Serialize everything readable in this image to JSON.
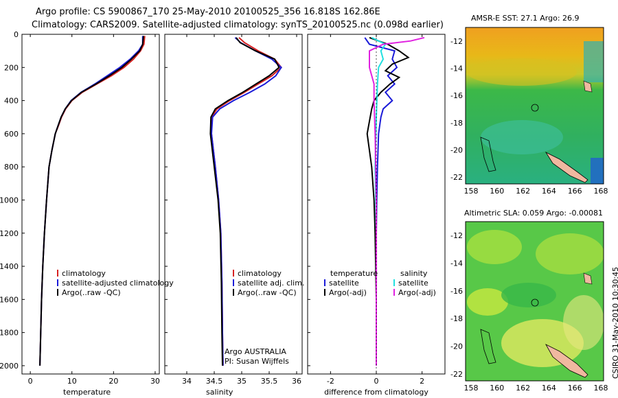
{
  "header": {
    "title_line1": "Argo profile: CS 5900867_170 25-May-2010 20100525_356 16.818S 162.86E",
    "title_line2": "Climatology: CARS2009. Satellite-adjusted climatology: synTS_20100525.nc (0.098d earlier)"
  },
  "colors": {
    "climatology": "#d62020",
    "satellite": "#1a1ad8",
    "argo": "#000000",
    "cyan": "#20e0e0",
    "magenta": "#e020e0"
  },
  "chart_data": [
    {
      "type": "line",
      "id": "temperature",
      "xlabel": "temperature",
      "xlim": [
        -2,
        31
      ],
      "xticks": [
        0,
        10,
        20,
        30
      ],
      "ylim": [
        0,
        2050
      ],
      "yticks": [
        0,
        200,
        400,
        600,
        800,
        1000,
        1200,
        1400,
        1600,
        1800,
        2000
      ],
      "legend": [
        "climatology",
        "satellite-adjusted climatology",
        "Argo(..raw -QC)"
      ],
      "series": [
        {
          "name": "climatology",
          "color": "#d62020",
          "x": [
            27.5,
            27.3,
            26.5,
            24.8,
            22.5,
            19.5,
            16.0,
            12.5,
            10.0,
            8.5,
            7.5,
            6.8,
            6.0,
            5.2,
            4.5,
            3.9,
            3.4,
            3.0,
            2.7,
            2.5,
            2.4,
            2.3
          ],
          "y": [
            10,
            60,
            100,
            150,
            200,
            250,
            300,
            350,
            400,
            450,
            500,
            550,
            600,
            700,
            800,
            1000,
            1200,
            1400,
            1600,
            1800,
            1900,
            2000
          ]
        },
        {
          "name": "satellite",
          "color": "#1a1ad8",
          "x": [
            27.0,
            27.0,
            26.0,
            24.0,
            21.5,
            18.5,
            15.5,
            12.2,
            9.8,
            8.4,
            7.4,
            6.7,
            6.0,
            5.2,
            4.5,
            3.9,
            3.4,
            3.0,
            2.7,
            2.5,
            2.4,
            2.3
          ],
          "y": [
            10,
            60,
            100,
            150,
            200,
            250,
            300,
            350,
            400,
            450,
            500,
            550,
            600,
            700,
            800,
            1000,
            1200,
            1400,
            1600,
            1800,
            1900,
            2000
          ]
        },
        {
          "name": "argo",
          "color": "#000000",
          "x": [
            27.2,
            27.0,
            26.3,
            24.3,
            22.0,
            19.0,
            15.8,
            12.3,
            9.9,
            8.4,
            7.4,
            6.7,
            6.0,
            5.2,
            4.5,
            3.9,
            3.4,
            3.0,
            2.7,
            2.5,
            2.4,
            2.3
          ],
          "y": [
            10,
            60,
            100,
            150,
            200,
            250,
            300,
            350,
            400,
            450,
            500,
            550,
            600,
            700,
            800,
            1000,
            1200,
            1400,
            1600,
            1800,
            1900,
            2000
          ]
        }
      ]
    },
    {
      "type": "line",
      "id": "salinity",
      "xlabel": "salinity",
      "xlim": [
        33.6,
        36.1
      ],
      "xticks": [
        34,
        34.5,
        35,
        35.5,
        36
      ],
      "ylim": [
        0,
        2050
      ],
      "legend": [
        "climatology",
        "satellite adj. clim.",
        "Argo(..raw -QC)"
      ],
      "series": [
        {
          "name": "climatology",
          "color": "#d62020",
          "x": [
            34.95,
            35.05,
            35.3,
            35.6,
            35.72,
            35.55,
            35.3,
            35.05,
            34.78,
            34.55,
            34.45,
            34.45,
            34.52,
            34.58,
            34.62,
            34.64,
            34.65,
            34.66
          ],
          "y": [
            20,
            50,
            100,
            150,
            200,
            250,
            300,
            350,
            400,
            450,
            500,
            600,
            800,
            1000,
            1200,
            1500,
            1800,
            2000
          ]
        },
        {
          "name": "satellite",
          "color": "#1a1ad8",
          "x": [
            34.88,
            34.98,
            35.25,
            35.55,
            35.72,
            35.62,
            35.42,
            35.15,
            34.85,
            34.6,
            34.47,
            34.45,
            34.52,
            34.58,
            34.62,
            34.64,
            34.65,
            34.66
          ],
          "y": [
            20,
            50,
            100,
            150,
            200,
            250,
            300,
            350,
            400,
            450,
            500,
            600,
            800,
            1000,
            1200,
            1500,
            1800,
            2000
          ]
        },
        {
          "name": "argo",
          "color": "#000000",
          "x": [
            34.9,
            34.97,
            35.25,
            35.6,
            35.68,
            35.5,
            35.26,
            35.02,
            34.75,
            34.52,
            34.44,
            34.43,
            34.5,
            34.57,
            34.61,
            34.63,
            34.64,
            34.65
          ],
          "y": [
            20,
            50,
            100,
            150,
            200,
            250,
            300,
            350,
            400,
            450,
            500,
            600,
            800,
            1000,
            1200,
            1500,
            1800,
            2000
          ]
        }
      ],
      "annotation": [
        "Argo AUSTRALIA",
        "PI: Susan Wijffels"
      ]
    },
    {
      "type": "line",
      "id": "difference",
      "xlabel": "difference from climatology",
      "xlim": [
        -3,
        3
      ],
      "xticks": [
        -2,
        0,
        2
      ],
      "ylim": [
        0,
        2050
      ],
      "legend_temperature": [
        "temperature",
        "satellite",
        "Argo(-adj)"
      ],
      "legend_salinity": [
        "salinity",
        "satellite",
        "Argo(-adj)"
      ],
      "series": [
        {
          "name": "temperature satellite",
          "color": "#1a1ad8",
          "x": [
            -0.5,
            -0.3,
            0.8,
            0.7,
            0.9,
            0.5,
            0.8,
            0.4,
            0.7,
            0.3,
            0.2,
            0.1,
            0.05,
            0.02,
            0.0,
            0.0,
            0.0
          ],
          "y": [
            20,
            60,
            100,
            150,
            200,
            250,
            300,
            350,
            400,
            450,
            500,
            600,
            800,
            1000,
            1200,
            1600,
            2000
          ]
        },
        {
          "name": "temperature argo",
          "color": "#000000",
          "x": [
            -0.3,
            0.5,
            1.0,
            1.4,
            0.7,
            0.4,
            1.0,
            0.6,
            0.2,
            -0.1,
            -0.2,
            -0.4,
            -0.2,
            -0.1,
            -0.05,
            0.0,
            0.0
          ],
          "y": [
            20,
            60,
            100,
            140,
            180,
            220,
            260,
            300,
            350,
            400,
            450,
            600,
            800,
            1000,
            1200,
            1600,
            2000
          ]
        },
        {
          "name": "salinity satellite",
          "color": "#20e0e0",
          "x": [
            -0.2,
            0.4,
            0.2,
            0.3,
            0.1,
            0.05,
            0.0,
            -0.05,
            0.0,
            0.0,
            0.0
          ],
          "y": [
            20,
            60,
            100,
            150,
            200,
            300,
            500,
            800,
            1200,
            1600,
            2000
          ]
        },
        {
          "name": "salinity argo",
          "color": "#e020e0",
          "x": [
            2.1,
            1.5,
            0.3,
            -0.3,
            -0.3,
            -0.1,
            -0.1,
            -0.05,
            0.0,
            0.0,
            0.0
          ],
          "y": [
            20,
            40,
            60,
            100,
            200,
            300,
            400,
            600,
            1000,
            1500,
            2000
          ]
        }
      ]
    },
    {
      "type": "heatmap",
      "id": "sst-map",
      "title": "AMSR-E SST: 27.1 Argo: 26.9",
      "xticks": [
        158,
        160,
        162,
        164,
        166,
        168
      ],
      "yticks": [
        -12,
        -14,
        -16,
        -18,
        -20,
        -22
      ]
    },
    {
      "type": "heatmap",
      "id": "sla-map",
      "title": "Altimetric SLA: 0.059 Argo: -0.00081",
      "xticks": [
        158,
        160,
        162,
        164,
        166,
        168
      ],
      "yticks": [
        -12,
        -14,
        -16,
        -18,
        -20,
        -22
      ]
    }
  ],
  "footer": {
    "stamp": "CSIRO 31-May-2010 10:30:45"
  }
}
